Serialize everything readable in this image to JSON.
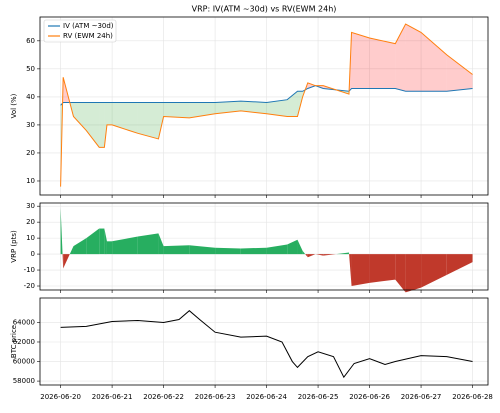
{
  "chart_data": [
    {
      "type": "line",
      "title": "VRP: IV(ATM ~30d) vs RV(EWM 24h)",
      "y_label": "Vol (%)",
      "x": [
        0,
        0.05,
        0.25,
        0.5,
        0.75,
        0.85,
        0.9,
        1,
        1.5,
        1.9,
        2,
        2.5,
        3,
        3.5,
        4,
        4.4,
        4.6,
        4.7,
        4.8,
        4.95,
        5.1,
        5.6,
        5.65,
        6,
        6.5,
        6.7,
        7,
        7.5,
        8
      ],
      "series": [
        {
          "name": "IV (ATM ~30d)",
          "color": "#1f77b4",
          "values": [
            37,
            38,
            38,
            38,
            38,
            38,
            38,
            38,
            38,
            38,
            38,
            38,
            38,
            38.5,
            38,
            39,
            42,
            42,
            43,
            44,
            43,
            42,
            43,
            43,
            43,
            42,
            42,
            42,
            43
          ]
        },
        {
          "name": "RV (EWM 24h)",
          "color": "#ff7f0e",
          "values": [
            8,
            47,
            33,
            28,
            22,
            22,
            30,
            30,
            27,
            25,
            33,
            32.5,
            34,
            35,
            34,
            33,
            33,
            40,
            45,
            44,
            44,
            41,
            63,
            61,
            59,
            66,
            63,
            55,
            48
          ]
        }
      ],
      "fill_between": true,
      "fill_positive_color": "#2ca02c",
      "fill_negative_color": "#ff0000",
      "fill_opacity": 0.2,
      "xlim": [
        -0.4,
        8.3
      ],
      "xticks": [
        0,
        1,
        2,
        3,
        4,
        5,
        6,
        7,
        8
      ],
      "ylim": [
        5,
        68.5
      ],
      "yticks": [
        10,
        20,
        30,
        40,
        50,
        60
      ],
      "grid": true,
      "legend": "upper left"
    },
    {
      "type": "area",
      "y_label": "VRP (pts)",
      "x": [
        0,
        0.05,
        0.25,
        0.5,
        0.75,
        0.85,
        0.9,
        1,
        1.5,
        1.9,
        2,
        2.5,
        3,
        3.5,
        4,
        4.4,
        4.6,
        4.7,
        4.8,
        4.95,
        5.1,
        5.6,
        5.65,
        6,
        6.5,
        6.7,
        7,
        7.5,
        8
      ],
      "values": [
        29,
        -9,
        5,
        10,
        16,
        16,
        8,
        8,
        11,
        13,
        5,
        5.5,
        4,
        3.5,
        4,
        6,
        9,
        2,
        -2,
        0,
        -1,
        1,
        -20,
        -18,
        -16,
        -24,
        -21,
        -13,
        -5
      ],
      "fill_positive_color": "#27ae60",
      "fill_negative_color": "#c0392b",
      "fill_opacity": 1,
      "xlim": [
        -0.4,
        8.3
      ],
      "xticks": [
        0,
        1,
        2,
        3,
        4,
        5,
        6,
        7,
        8
      ],
      "ylim": [
        -22.5,
        32
      ],
      "yticks": [
        -20,
        -10,
        0,
        10,
        20,
        30
      ],
      "grid": true
    },
    {
      "type": "line",
      "y_label": "BTC price",
      "x": [
        0,
        0.5,
        1,
        1.5,
        2,
        2.3,
        2.5,
        2.7,
        3,
        3.5,
        4,
        4.3,
        4.5,
        4.6,
        4.8,
        5,
        5.3,
        5.5,
        5.7,
        6,
        6.3,
        6.5,
        7,
        7.5,
        8
      ],
      "series": [
        {
          "color": "#000000",
          "values": [
            63500,
            63600,
            64100,
            64200,
            64000,
            64300,
            65200,
            64300,
            63000,
            62500,
            62600,
            62000,
            60000,
            59400,
            60500,
            61000,
            60500,
            58400,
            59800,
            60300,
            59700,
            60000,
            60600,
            60500,
            60000
          ]
        }
      ],
      "xlim": [
        -0.4,
        8.3
      ],
      "xticks": [
        {
          "value": 0,
          "label": "2026-06-20"
        },
        {
          "value": 1,
          "label": "2026-06-21"
        },
        {
          "value": 2,
          "label": "2026-06-22"
        },
        {
          "value": 3,
          "label": "2026-06-23"
        },
        {
          "value": 4,
          "label": "2026-06-24"
        },
        {
          "value": 5,
          "label": "2026-06-25"
        },
        {
          "value": 6,
          "label": "2026-06-26"
        },
        {
          "value": 7,
          "label": "2026-06-27"
        },
        {
          "value": 8,
          "label": "2026-06-28"
        }
      ],
      "ylim": [
        57600,
        66500
      ],
      "yticks": [
        58000,
        60000,
        62000,
        64000
      ],
      "grid": true
    }
  ]
}
